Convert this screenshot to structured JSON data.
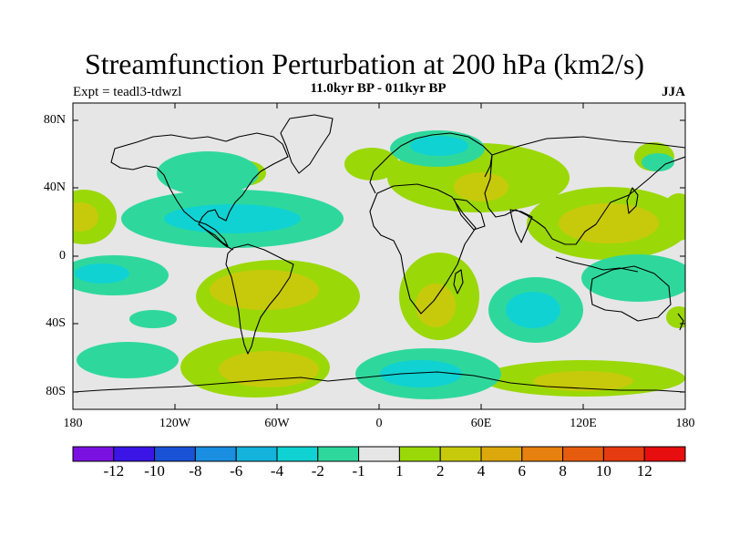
{
  "title": "Streamfunction Perturbation at 200 hPa (km2/s)",
  "subtitle": "11.0kyr BP - 011kyr BP",
  "experiment": "Expt = teadl3-tdwzl",
  "season": "JJA",
  "map_data": {
    "projection": "cylindrical-equidistant",
    "lon_range": [
      -180,
      180
    ],
    "lat_range": [
      -90,
      90
    ],
    "lat_ticks": [
      "80N",
      "40N",
      "0",
      "40S",
      "80S"
    ],
    "lon_ticks": [
      "180",
      "120W",
      "60W",
      "0",
      "60E",
      "120E",
      "180"
    ],
    "field": "200 hPa streamfunction anomaly",
    "units": "km2/s"
  },
  "colorbar": {
    "labels": [
      "-12",
      "-10",
      "-8",
      "-6",
      "-4",
      "-2",
      "-1",
      "1",
      "2",
      "4",
      "6",
      "8",
      "10",
      "12"
    ],
    "colors": [
      "#7a11e0",
      "#3a15e6",
      "#1a52d6",
      "#1a8ee0",
      "#13b3dc",
      "#10d2d2",
      "#2ed89c",
      "#e6e6e6",
      "#9bd808",
      "#c7ca0a",
      "#dca80c",
      "#e6800e",
      "#e65c0e",
      "#e63a10",
      "#e60e0e"
    ]
  },
  "palette": {
    "neutral": "#e6e6e6",
    "pos1": "#9bd808",
    "pos2": "#c7ca0a",
    "neg1": "#2ed89c",
    "neg2": "#10d2d2"
  }
}
